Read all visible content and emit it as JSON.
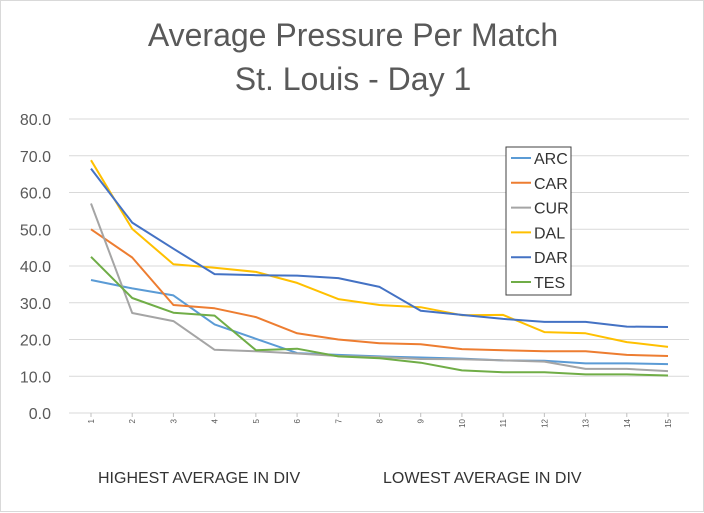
{
  "chart_data": {
    "type": "line",
    "title": "Average Pressure Per Match",
    "subtitle": "St. Louis - Day 1",
    "x": [
      1,
      2,
      3,
      4,
      5,
      6,
      7,
      8,
      9,
      10,
      11,
      12,
      13,
      14,
      15
    ],
    "x_tick_labels": [
      "1",
      "2",
      "3",
      "4",
      "5",
      "6",
      "7",
      "8",
      "9",
      "10",
      "11",
      "12",
      "13",
      "14",
      "15"
    ],
    "ylim": [
      0,
      80
    ],
    "y_tick_labels": [
      "0.0",
      "10.0",
      "20.0",
      "30.0",
      "40.0",
      "50.0",
      "60.0",
      "70.0",
      "80.0"
    ],
    "grid": true,
    "legend_position": "right",
    "series": [
      {
        "name": "ARC",
        "color": "#5b9bd5",
        "values": [
          36.2,
          33.9,
          32.0,
          24.1,
          20.2,
          16.3,
          15.8,
          15.4,
          15.1,
          14.8,
          14.3,
          14.2,
          13.5,
          13.5,
          13.3
        ]
      },
      {
        "name": "CAR",
        "color": "#ed7d31",
        "values": [
          50.0,
          42.3,
          29.4,
          28.5,
          26.1,
          21.7,
          20.0,
          19.0,
          18.7,
          17.4,
          17.1,
          16.8,
          16.8,
          15.8,
          15.5
        ]
      },
      {
        "name": "CUR",
        "color": "#a5a5a5",
        "values": [
          57.0,
          27.2,
          25.0,
          17.2,
          16.8,
          16.2,
          15.5,
          15.2,
          14.7,
          14.6,
          14.3,
          14.0,
          12.0,
          12.0,
          11.4
        ]
      },
      {
        "name": "DAL",
        "color": "#ffc000",
        "values": [
          68.8,
          50.1,
          40.5,
          39.5,
          38.4,
          35.4,
          31.0,
          29.4,
          28.8,
          26.6,
          26.7,
          22.0,
          21.7,
          19.3,
          18.0
        ]
      },
      {
        "name": "DAR",
        "color": "#4472c4",
        "values": [
          66.5,
          51.8,
          44.7,
          37.8,
          37.5,
          37.4,
          36.7,
          34.3,
          27.8,
          26.7,
          25.6,
          24.8,
          24.8,
          23.5,
          23.4
        ]
      },
      {
        "name": "TES",
        "color": "#70ad47",
        "values": [
          42.5,
          31.3,
          27.3,
          26.5,
          17.1,
          17.5,
          15.4,
          14.9,
          13.7,
          11.6,
          11.1,
          11.1,
          10.5,
          10.5,
          10.2
        ]
      }
    ],
    "annotations": [
      "HIGHEST AVERAGE IN DIV",
      "LOWEST AVERAGE IN DIV"
    ]
  }
}
